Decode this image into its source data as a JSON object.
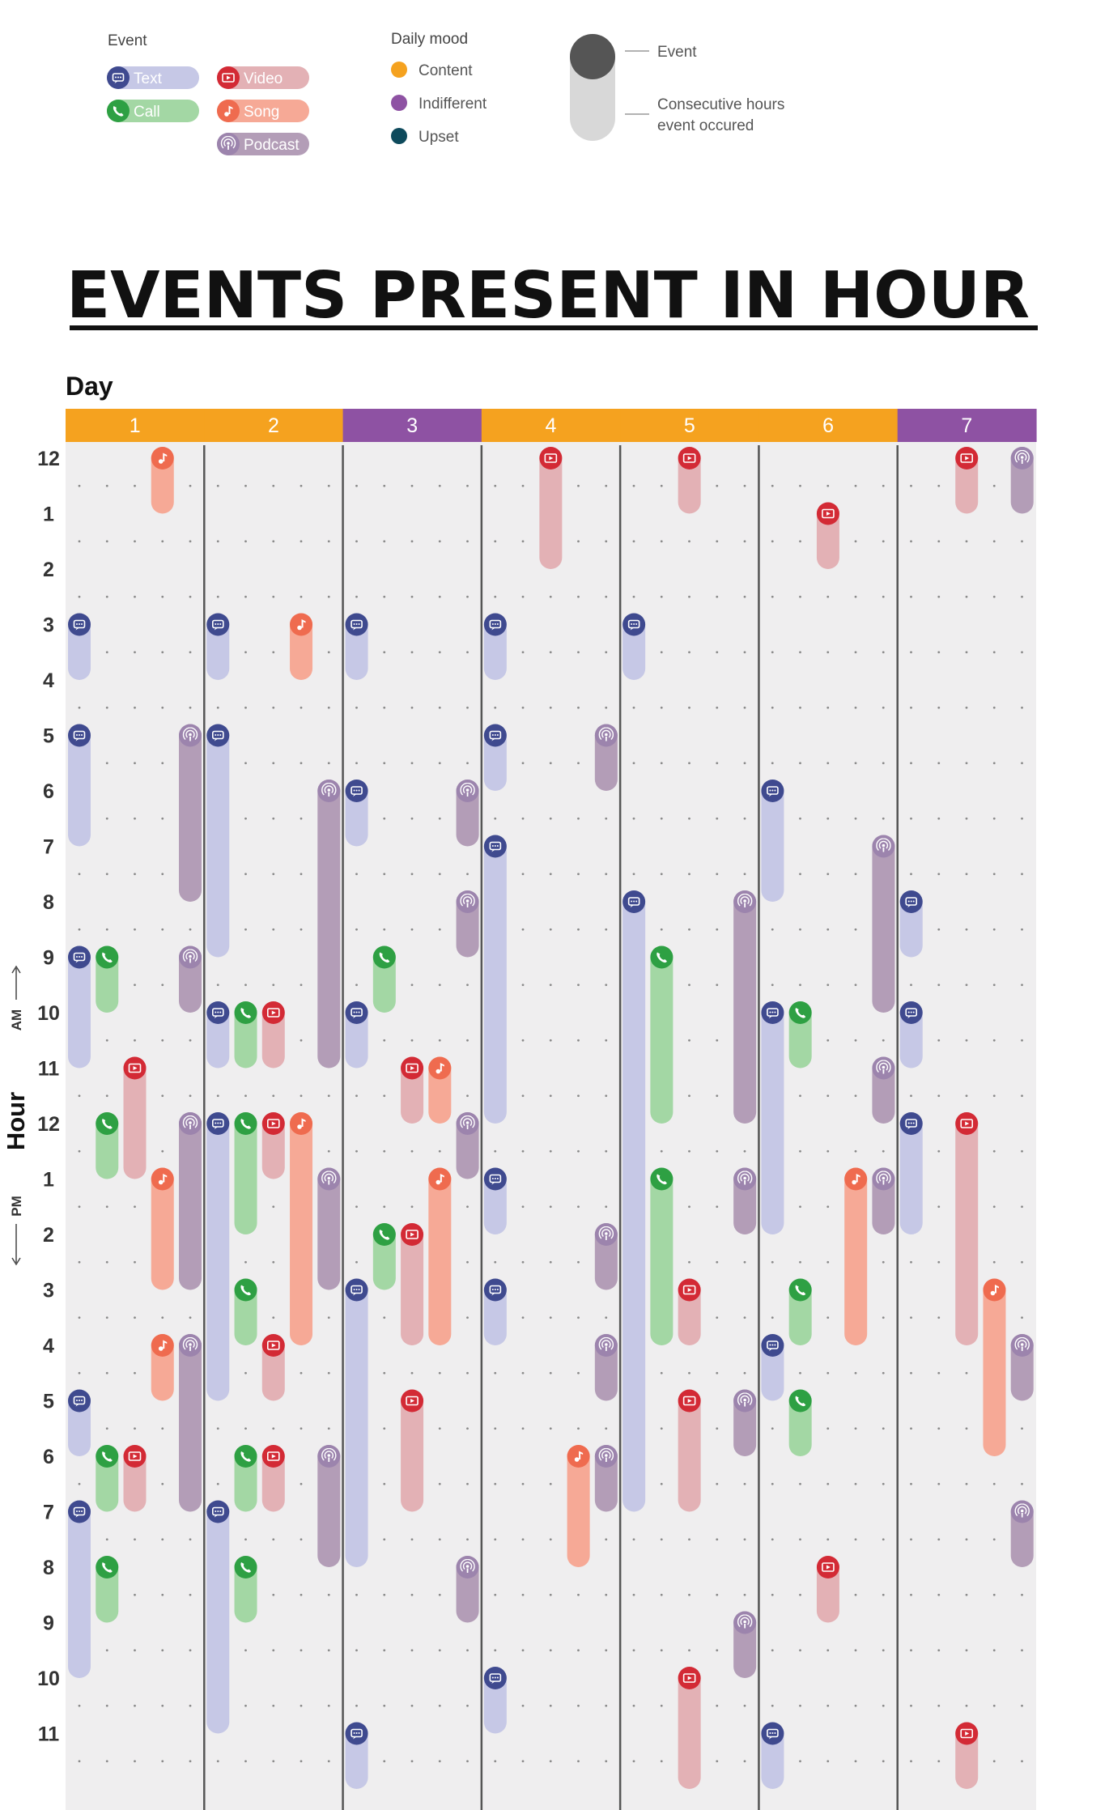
{
  "legend": {
    "event_title": "Event",
    "events": [
      {
        "key": "text",
        "label": "Text",
        "icon": "text-bubble-icon",
        "color": "#3f4a8f",
        "bar": "#c6c8e6"
      },
      {
        "key": "video",
        "label": "Video",
        "icon": "video-icon",
        "color": "#d32a35",
        "bar": "#e3b1b5"
      },
      {
        "key": "call",
        "label": "Call",
        "icon": "phone-icon",
        "color": "#2ea043",
        "bar": "#a3d7a4"
      },
      {
        "key": "song",
        "label": "Song",
        "icon": "music-note-icon",
        "color": "#ef6b4f",
        "bar": "#f6a996"
      },
      {
        "key": "podcast",
        "label": "Podcast",
        "icon": "podcast-icon",
        "color": "#9c84ad",
        "bar": "#b39db7"
      }
    ],
    "mood_title": "Daily mood",
    "moods": [
      {
        "key": "content",
        "label": "Content",
        "color": "#f5a21f"
      },
      {
        "key": "indifferent",
        "label": "Indifferent",
        "color": "#8e52a3"
      },
      {
        "key": "upset",
        "label": "Upset",
        "color": "#0e4a5c"
      }
    ],
    "key_event": "Event",
    "key_duration": "Consecutive hours event occured"
  },
  "chart_data": {
    "type": "timeline",
    "title": "EVENTS PRESENT IN HOUR",
    "xlabel": "Day",
    "ylabel": "Hour",
    "am_label": "AM",
    "pm_label": "PM",
    "days": [
      "1",
      "2",
      "3",
      "4",
      "5",
      "6",
      "7"
    ],
    "day_moods": [
      "content",
      "content",
      "indifferent",
      "content",
      "content",
      "content",
      "indifferent"
    ],
    "hour_labels": [
      "12",
      "1",
      "2",
      "3",
      "4",
      "5",
      "6",
      "7",
      "8",
      "9",
      "10",
      "11",
      "12",
      "1",
      "2",
      "3",
      "4",
      "5",
      "6",
      "7",
      "8",
      "9",
      "10",
      "11"
    ],
    "lanes_per_day": 5,
    "events": [
      {
        "day": 1,
        "lane": 0,
        "type": "text",
        "start": 3,
        "end": 4
      },
      {
        "day": 1,
        "lane": 0,
        "type": "text",
        "start": 5,
        "end": 7
      },
      {
        "day": 1,
        "lane": 0,
        "type": "text",
        "start": 9,
        "end": 11
      },
      {
        "day": 1,
        "lane": 0,
        "type": "text",
        "start": 17,
        "end": 18
      },
      {
        "day": 1,
        "lane": 0,
        "type": "text",
        "start": 19,
        "end": 22
      },
      {
        "day": 1,
        "lane": 1,
        "type": "call",
        "start": 9,
        "end": 10
      },
      {
        "day": 1,
        "lane": 1,
        "type": "call",
        "start": 12,
        "end": 13
      },
      {
        "day": 1,
        "lane": 1,
        "type": "call",
        "start": 18,
        "end": 19
      },
      {
        "day": 1,
        "lane": 1,
        "type": "call",
        "start": 20,
        "end": 21
      },
      {
        "day": 1,
        "lane": 2,
        "type": "video",
        "start": 11,
        "end": 13
      },
      {
        "day": 1,
        "lane": 2,
        "type": "video",
        "start": 18,
        "end": 19
      },
      {
        "day": 1,
        "lane": 3,
        "type": "song",
        "start": 0,
        "end": 1
      },
      {
        "day": 1,
        "lane": 3,
        "type": "song",
        "start": 13,
        "end": 15
      },
      {
        "day": 1,
        "lane": 3,
        "type": "song",
        "start": 16,
        "end": 17
      },
      {
        "day": 1,
        "lane": 4,
        "type": "podcast",
        "start": 5,
        "end": 8
      },
      {
        "day": 1,
        "lane": 4,
        "type": "podcast",
        "start": 9,
        "end": 10
      },
      {
        "day": 1,
        "lane": 4,
        "type": "podcast",
        "start": 12,
        "end": 15
      },
      {
        "day": 1,
        "lane": 4,
        "type": "podcast",
        "start": 16,
        "end": 19
      },
      {
        "day": 2,
        "lane": 0,
        "type": "text",
        "start": 3,
        "end": 4
      },
      {
        "day": 2,
        "lane": 0,
        "type": "text",
        "start": 5,
        "end": 9
      },
      {
        "day": 2,
        "lane": 0,
        "type": "text",
        "start": 10,
        "end": 11
      },
      {
        "day": 2,
        "lane": 0,
        "type": "text",
        "start": 12,
        "end": 17
      },
      {
        "day": 2,
        "lane": 0,
        "type": "text",
        "start": 19,
        "end": 23
      },
      {
        "day": 2,
        "lane": 1,
        "type": "call",
        "start": 10,
        "end": 11
      },
      {
        "day": 2,
        "lane": 1,
        "type": "call",
        "start": 12,
        "end": 14
      },
      {
        "day": 2,
        "lane": 1,
        "type": "call",
        "start": 15,
        "end": 16
      },
      {
        "day": 2,
        "lane": 1,
        "type": "call",
        "start": 18,
        "end": 19
      },
      {
        "day": 2,
        "lane": 1,
        "type": "call",
        "start": 20,
        "end": 21
      },
      {
        "day": 2,
        "lane": 2,
        "type": "video",
        "start": 10,
        "end": 11
      },
      {
        "day": 2,
        "lane": 2,
        "type": "video",
        "start": 12,
        "end": 13
      },
      {
        "day": 2,
        "lane": 2,
        "type": "video",
        "start": 16,
        "end": 17
      },
      {
        "day": 2,
        "lane": 2,
        "type": "video",
        "start": 18,
        "end": 19
      },
      {
        "day": 2,
        "lane": 3,
        "type": "song",
        "start": 3,
        "end": 4
      },
      {
        "day": 2,
        "lane": 3,
        "type": "song",
        "start": 12,
        "end": 16
      },
      {
        "day": 2,
        "lane": 4,
        "type": "podcast",
        "start": 6,
        "end": 11
      },
      {
        "day": 2,
        "lane": 4,
        "type": "podcast",
        "start": 13,
        "end": 15
      },
      {
        "day": 2,
        "lane": 4,
        "type": "podcast",
        "start": 18,
        "end": 20
      },
      {
        "day": 3,
        "lane": 0,
        "type": "text",
        "start": 3,
        "end": 4
      },
      {
        "day": 3,
        "lane": 0,
        "type": "text",
        "start": 6,
        "end": 7
      },
      {
        "day": 3,
        "lane": 0,
        "type": "text",
        "start": 10,
        "end": 11
      },
      {
        "day": 3,
        "lane": 0,
        "type": "text",
        "start": 15,
        "end": 20
      },
      {
        "day": 3,
        "lane": 0,
        "type": "text",
        "start": 23,
        "end": 24
      },
      {
        "day": 3,
        "lane": 1,
        "type": "call",
        "start": 9,
        "end": 10
      },
      {
        "day": 3,
        "lane": 1,
        "type": "call",
        "start": 14,
        "end": 15
      },
      {
        "day": 3,
        "lane": 2,
        "type": "video",
        "start": 11,
        "end": 12
      },
      {
        "day": 3,
        "lane": 2,
        "type": "video",
        "start": 14,
        "end": 16
      },
      {
        "day": 3,
        "lane": 2,
        "type": "video",
        "start": 17,
        "end": 19
      },
      {
        "day": 3,
        "lane": 3,
        "type": "song",
        "start": 11,
        "end": 12
      },
      {
        "day": 3,
        "lane": 3,
        "type": "song",
        "start": 13,
        "end": 16
      },
      {
        "day": 3,
        "lane": 4,
        "type": "podcast",
        "start": 6,
        "end": 7
      },
      {
        "day": 3,
        "lane": 4,
        "type": "podcast",
        "start": 8,
        "end": 9
      },
      {
        "day": 3,
        "lane": 4,
        "type": "podcast",
        "start": 12,
        "end": 13
      },
      {
        "day": 3,
        "lane": 4,
        "type": "podcast",
        "start": 20,
        "end": 21
      },
      {
        "day": 4,
        "lane": 0,
        "type": "text",
        "start": 3,
        "end": 4
      },
      {
        "day": 4,
        "lane": 0,
        "type": "text",
        "start": 5,
        "end": 6
      },
      {
        "day": 4,
        "lane": 0,
        "type": "text",
        "start": 7,
        "end": 12
      },
      {
        "day": 4,
        "lane": 0,
        "type": "text",
        "start": 13,
        "end": 14
      },
      {
        "day": 4,
        "lane": 0,
        "type": "text",
        "start": 15,
        "end": 16
      },
      {
        "day": 4,
        "lane": 0,
        "type": "text",
        "start": 22,
        "end": 23
      },
      {
        "day": 4,
        "lane": 2,
        "type": "video",
        "start": 0,
        "end": 2
      },
      {
        "day": 4,
        "lane": 3,
        "type": "song",
        "start": 18,
        "end": 20
      },
      {
        "day": 4,
        "lane": 4,
        "type": "podcast",
        "start": 5,
        "end": 6
      },
      {
        "day": 4,
        "lane": 4,
        "type": "podcast",
        "start": 14,
        "end": 15
      },
      {
        "day": 4,
        "lane": 4,
        "type": "podcast",
        "start": 16,
        "end": 17
      },
      {
        "day": 4,
        "lane": 4,
        "type": "podcast",
        "start": 18,
        "end": 19
      },
      {
        "day": 5,
        "lane": 0,
        "type": "text",
        "start": 3,
        "end": 4
      },
      {
        "day": 5,
        "lane": 0,
        "type": "text",
        "start": 8,
        "end": 19
      },
      {
        "day": 5,
        "lane": 1,
        "type": "call",
        "start": 9,
        "end": 12
      },
      {
        "day": 5,
        "lane": 1,
        "type": "call",
        "start": 13,
        "end": 16
      },
      {
        "day": 5,
        "lane": 2,
        "type": "video",
        "start": 0,
        "end": 1
      },
      {
        "day": 5,
        "lane": 2,
        "type": "video",
        "start": 15,
        "end": 16
      },
      {
        "day": 5,
        "lane": 2,
        "type": "video",
        "start": 17,
        "end": 19
      },
      {
        "day": 5,
        "lane": 2,
        "type": "video",
        "start": 22,
        "end": 24
      },
      {
        "day": 5,
        "lane": 4,
        "type": "podcast",
        "start": 8,
        "end": 12
      },
      {
        "day": 5,
        "lane": 4,
        "type": "podcast",
        "start": 13,
        "end": 14
      },
      {
        "day": 5,
        "lane": 4,
        "type": "podcast",
        "start": 17,
        "end": 18
      },
      {
        "day": 5,
        "lane": 4,
        "type": "podcast",
        "start": 21,
        "end": 22
      },
      {
        "day": 6,
        "lane": 0,
        "type": "text",
        "start": 6,
        "end": 8
      },
      {
        "day": 6,
        "lane": 0,
        "type": "text",
        "start": 10,
        "end": 14
      },
      {
        "day": 6,
        "lane": 0,
        "type": "text",
        "start": 16,
        "end": 17
      },
      {
        "day": 6,
        "lane": 0,
        "type": "text",
        "start": 23,
        "end": 24
      },
      {
        "day": 6,
        "lane": 1,
        "type": "call",
        "start": 10,
        "end": 11
      },
      {
        "day": 6,
        "lane": 1,
        "type": "call",
        "start": 15,
        "end": 16
      },
      {
        "day": 6,
        "lane": 1,
        "type": "call",
        "start": 17,
        "end": 18
      },
      {
        "day": 6,
        "lane": 2,
        "type": "video",
        "start": 1,
        "end": 2
      },
      {
        "day": 6,
        "lane": 2,
        "type": "video",
        "start": 20,
        "end": 21
      },
      {
        "day": 6,
        "lane": 3,
        "type": "song",
        "start": 13,
        "end": 16
      },
      {
        "day": 6,
        "lane": 4,
        "type": "podcast",
        "start": 7,
        "end": 10
      },
      {
        "day": 6,
        "lane": 4,
        "type": "podcast",
        "start": 11,
        "end": 12
      },
      {
        "day": 6,
        "lane": 4,
        "type": "podcast",
        "start": 13,
        "end": 14
      },
      {
        "day": 7,
        "lane": 0,
        "type": "text",
        "start": 8,
        "end": 9
      },
      {
        "day": 7,
        "lane": 0,
        "type": "text",
        "start": 10,
        "end": 11
      },
      {
        "day": 7,
        "lane": 0,
        "type": "text",
        "start": 12,
        "end": 14
      },
      {
        "day": 7,
        "lane": 2,
        "type": "video",
        "start": 0,
        "end": 1
      },
      {
        "day": 7,
        "lane": 2,
        "type": "video",
        "start": 12,
        "end": 16
      },
      {
        "day": 7,
        "lane": 2,
        "type": "video",
        "start": 23,
        "end": 24
      },
      {
        "day": 7,
        "lane": 3,
        "type": "song",
        "start": 15,
        "end": 18
      },
      {
        "day": 7,
        "lane": 4,
        "type": "podcast",
        "start": 0,
        "end": 1
      },
      {
        "day": 7,
        "lane": 4,
        "type": "podcast",
        "start": 16,
        "end": 17
      },
      {
        "day": 7,
        "lane": 4,
        "type": "podcast",
        "start": 19,
        "end": 20
      }
    ]
  }
}
